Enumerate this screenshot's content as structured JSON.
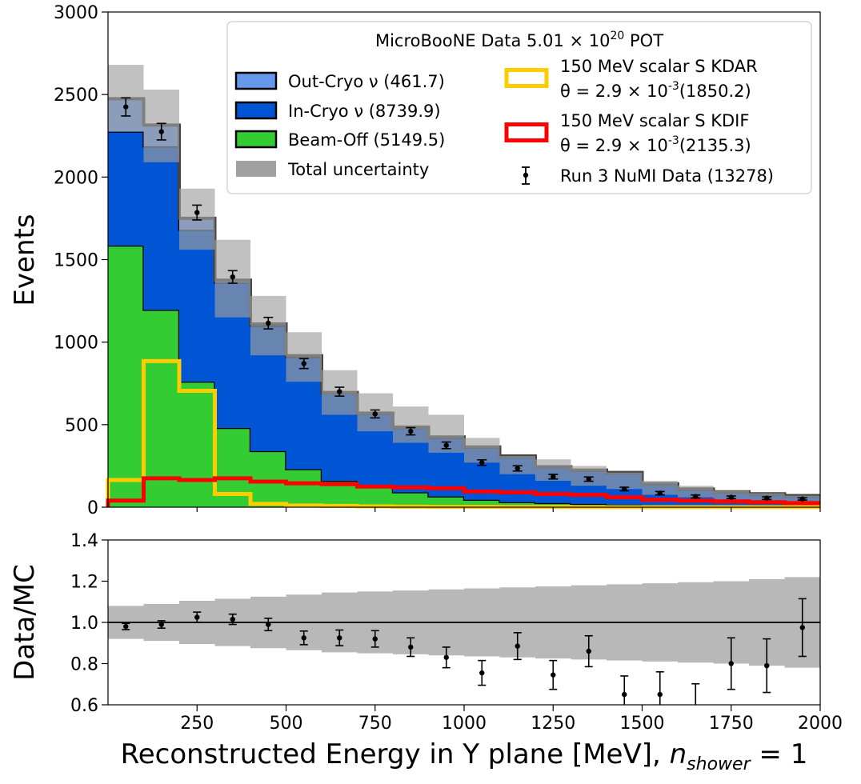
{
  "chart_data": {
    "type": "histogram",
    "title": "MicroBooNE Data 5.01 × 10^20 POT",
    "legend_title": {
      "prefix": "MicroBooNE Data 5.01 × 10",
      "exp": "20",
      "suffix": " POT"
    },
    "xlabel": {
      "main": "Reconstructed Energy in Y plane [MeV], ",
      "var": "n",
      "sub": "shower",
      "tail": " = 1"
    },
    "bin_edges": [
      0,
      100,
      200,
      300,
      400,
      500,
      600,
      700,
      800,
      900,
      1000,
      1100,
      1200,
      1300,
      1400,
      1500,
      1600,
      1700,
      1800,
      1900,
      2000
    ],
    "top_panel": {
      "ylabel": "Events",
      "xlim": [
        0,
        2000
      ],
      "ylim": [
        0,
        3000
      ],
      "yticks": [
        0,
        500,
        1000,
        1500,
        2000,
        2500,
        3000
      ],
      "legend_location": "upper right",
      "stack": [
        {
          "name": "Beam-Off (5149.5)",
          "color": "#33cc33",
          "values": [
            1585,
            1195,
            760,
            480,
            340,
            230,
            160,
            120,
            90,
            65,
            45,
            30,
            25,
            20,
            15,
            12,
            10,
            8,
            6,
            5
          ]
        },
        {
          "name": "In-Cryo ν (8739.9)",
          "color": "#0055d4",
          "values": [
            690,
            990,
            920,
            880,
            760,
            680,
            530,
            445,
            390,
            355,
            315,
            275,
            215,
            200,
            190,
            125,
            95,
            80,
            70,
            60
          ]
        },
        {
          "name": "Out-Cryo ν (461.7)",
          "color": "#6699ee",
          "values": [
            200,
            130,
            70,
            15,
            10,
            8,
            5,
            5,
            5,
            5,
            5,
            5,
            5,
            5,
            5,
            5,
            5,
            5,
            5,
            5
          ]
        }
      ],
      "uncertainty": {
        "name": "Total uncertainty",
        "color": "#a0a0a0",
        "lower": [
          2280,
          2090,
          1560,
          1150,
          920,
          760,
          560,
          460,
          390,
          330,
          270,
          200,
          160,
          130,
          110,
          75,
          60,
          45,
          35,
          30
        ],
        "upper": [
          2680,
          2530,
          1930,
          1620,
          1280,
          1060,
          830,
          690,
          610,
          560,
          420,
          310,
          290,
          250,
          210,
          160,
          130,
          100,
          85,
          70
        ]
      },
      "signals": [
        {
          "name": "150 MeV scalar S KDAR",
          "label_lines": [
            "150 MeV scalar S KDAR",
            "θ = 2.9 × 10^-3(1850.2)"
          ],
          "color": "#ffcc00",
          "values": [
            165,
            885,
            705,
            80,
            20,
            10,
            8,
            5,
            3,
            2,
            2,
            1,
            1,
            0,
            0,
            0,
            0,
            0,
            0,
            0
          ]
        },
        {
          "name": "150 MeV scalar S KDIF",
          "label_lines": [
            "150 MeV scalar S KDIF",
            "θ = 2.9 × 10^-3(2135.3)"
          ],
          "color": "#ff0000",
          "values": [
            40,
            175,
            165,
            175,
            155,
            145,
            140,
            125,
            120,
            115,
            95,
            90,
            80,
            75,
            60,
            45,
            40,
            35,
            30,
            25
          ]
        }
      ],
      "data": {
        "name": "Run 3 NuMI Data (13278)",
        "x": [
          50,
          150,
          250,
          350,
          450,
          550,
          650,
          750,
          850,
          950,
          1050,
          1150,
          1250,
          1350,
          1450,
          1550,
          1650,
          1750,
          1850,
          1950
        ],
        "y": [
          2425,
          2275,
          1785,
          1395,
          1115,
          870,
          700,
          565,
          460,
          375,
          270,
          235,
          185,
          170,
          110,
          85,
          65,
          60,
          55,
          50
        ],
        "err": [
          55,
          50,
          45,
          38,
          35,
          30,
          27,
          24,
          22,
          20,
          17,
          16,
          14,
          13,
          11,
          10,
          9,
          8,
          8,
          7
        ]
      }
    },
    "bottom_panel": {
      "ylabel": "Data/MC",
      "xlim": [
        0,
        2000
      ],
      "ylim": [
        0.6,
        1.4
      ],
      "yticks": [
        0.6,
        0.8,
        1.0,
        1.2,
        1.4
      ],
      "xticks": [
        250,
        500,
        750,
        1000,
        1250,
        1500,
        1750,
        2000
      ],
      "reference_line": 1.0,
      "band": {
        "lower": [
          0.92,
          0.91,
          0.895,
          0.885,
          0.875,
          0.865,
          0.855,
          0.85,
          0.845,
          0.84,
          0.835,
          0.83,
          0.825,
          0.82,
          0.815,
          0.81,
          0.805,
          0.8,
          0.79,
          0.78
        ],
        "upper": [
          1.08,
          1.09,
          1.105,
          1.115,
          1.125,
          1.135,
          1.145,
          1.15,
          1.155,
          1.16,
          1.165,
          1.17,
          1.175,
          1.18,
          1.185,
          1.19,
          1.195,
          1.2,
          1.21,
          1.22
        ]
      },
      "points": {
        "x": [
          50,
          150,
          250,
          350,
          450,
          550,
          650,
          750,
          850,
          950,
          1050,
          1150,
          1250,
          1350,
          1450,
          1550,
          1650,
          1750,
          1850,
          1950
        ],
        "y": [
          0.98,
          0.99,
          1.025,
          1.015,
          0.99,
          0.925,
          0.925,
          0.92,
          0.88,
          0.83,
          0.755,
          0.885,
          0.745,
          0.86,
          0.65,
          0.65,
          null,
          0.8,
          0.79,
          0.975
        ],
        "err": [
          0.015,
          0.018,
          0.025,
          0.025,
          0.03,
          0.033,
          0.038,
          0.04,
          0.045,
          0.05,
          0.06,
          0.065,
          0.07,
          0.075,
          0.09,
          0.11,
          0.12,
          0.125,
          0.13,
          0.14
        ]
      }
    }
  }
}
